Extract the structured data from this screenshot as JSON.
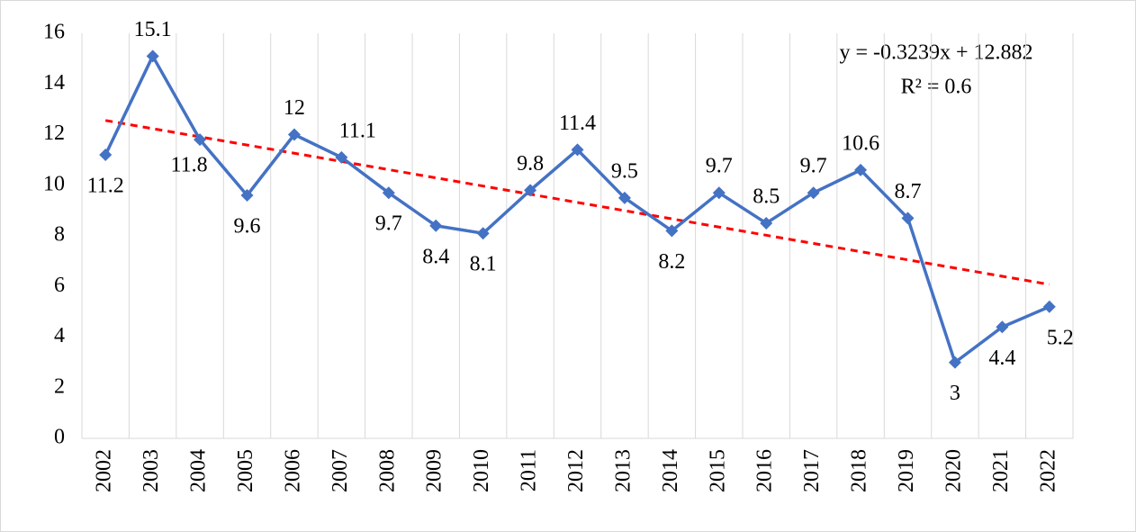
{
  "chart_data": {
    "type": "line",
    "categories": [
      "2002",
      "2003",
      "2004",
      "2005",
      "2006",
      "2007",
      "2008",
      "2009",
      "2010",
      "2011",
      "2012",
      "2013",
      "2014",
      "2015",
      "2016",
      "2017",
      "2018",
      "2019",
      "2020",
      "2021",
      "2022"
    ],
    "series": [
      {
        "name": "Value",
        "color": "#4472c4",
        "values": [
          11.2,
          15.1,
          11.8,
          9.6,
          12,
          11.1,
          9.7,
          8.4,
          8.1,
          9.8,
          11.4,
          9.5,
          8.2,
          9.7,
          8.5,
          9.7,
          10.6,
          8.7,
          3,
          4.4,
          5.2
        ]
      }
    ],
    "ylim": [
      0,
      16
    ],
    "yticks": [
      0,
      2,
      4,
      6,
      8,
      10,
      12,
      14,
      16
    ],
    "grid": true,
    "trendline": {
      "slope": -0.3239,
      "intercept": 12.882,
      "color": "#ff0000",
      "equation": "y = -0.3239x + 12.882",
      "r_squared": "R² = 0.6"
    }
  }
}
